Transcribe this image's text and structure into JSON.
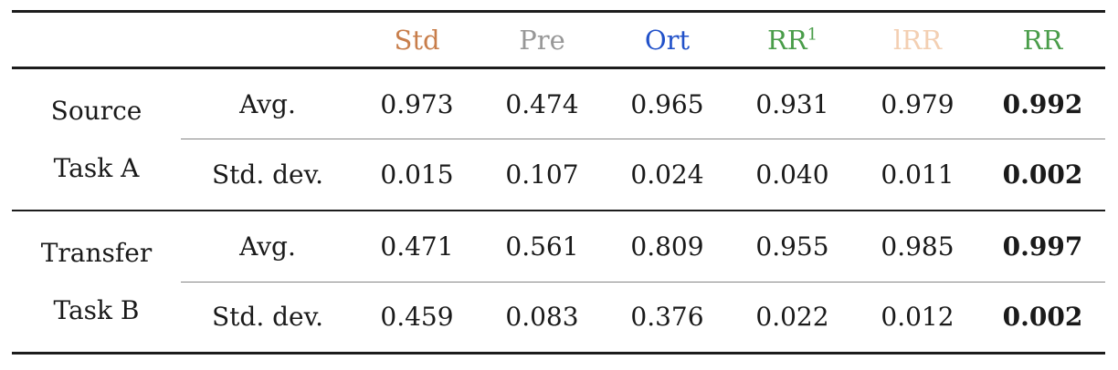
{
  "table": {
    "rule_colors": {
      "heavy": "#1c1c1c",
      "light": "#848484"
    },
    "columns": [
      {
        "label": "Std",
        "color": "#c87e4b"
      },
      {
        "label": "Pre",
        "color": "#979797"
      },
      {
        "label": "Ort",
        "color": "#2151c9"
      },
      {
        "label": "RR",
        "sup": "1",
        "color": "#4a9d4a"
      },
      {
        "label": "lRR",
        "color": "#f3cfb2"
      },
      {
        "label": "RR",
        "color": "#4a9d4a"
      }
    ],
    "groups": [
      {
        "line1": "Source",
        "line2": "Task A",
        "rows": [
          {
            "stat": "Avg.",
            "values": [
              "0.973",
              "0.474",
              "0.965",
              "0.931",
              "0.979",
              "0.992"
            ]
          },
          {
            "stat": "Std. dev.",
            "values": [
              "0.015",
              "0.107",
              "0.024",
              "0.040",
              "0.011",
              "0.002"
            ]
          }
        ]
      },
      {
        "line1": "Transfer",
        "line2": "Task B",
        "rows": [
          {
            "stat": "Avg.",
            "values": [
              "0.471",
              "0.561",
              "0.809",
              "0.955",
              "0.985",
              "0.997"
            ]
          },
          {
            "stat": "Std. dev.",
            "values": [
              "0.459",
              "0.083",
              "0.376",
              "0.022",
              "0.012",
              "0.002"
            ]
          }
        ]
      }
    ]
  }
}
